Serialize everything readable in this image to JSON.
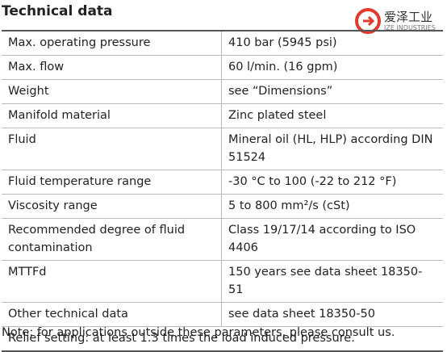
{
  "header": {
    "title": "Technical data",
    "logo_text": "爱泽工业",
    "logo_subtext": "IZE INDUSTRIES"
  },
  "table": {
    "rows": [
      [
        "Max. operating pressure",
        "410 bar (5945 psi)"
      ],
      [
        "Max. flow",
        "60 l/min. (16 gpm)"
      ],
      [
        "Weight",
        "see “Dimensions”"
      ],
      [
        "Manifold material",
        "Zinc plated steel"
      ],
      [
        "Fluid",
        "Mineral oil (HL, HLP) according DIN 51524"
      ],
      [
        "Fluid temperature range",
        "-30 °C to 100 (-22 to 212 °F)"
      ],
      [
        "Viscosity range",
        "5 to 800 mm²/s (cSt)"
      ],
      [
        "Recommended degree of fluid contamination",
        "Class 19/17/14 according to ISO 4406"
      ],
      [
        "MTTFd",
        "150 years see data sheet 18350-51"
      ],
      [
        "Other technical data",
        "see data sheet 18350-50"
      ]
    ],
    "footer_row": "Relief setting: at least 1.3 times the load induced pressure."
  },
  "note": "Note: for applications outside these parameters, please consult us."
}
